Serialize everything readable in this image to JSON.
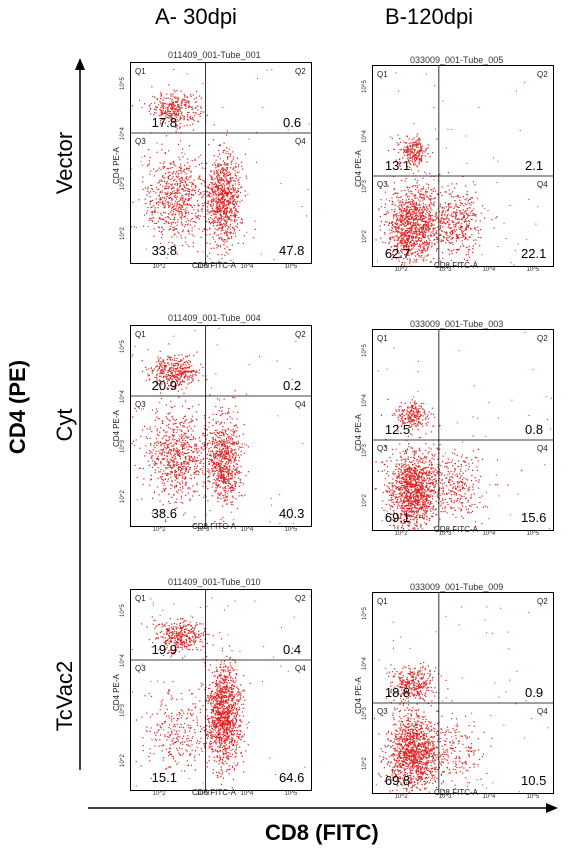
{
  "columns": [
    "A- 30dpi",
    "B-120dpi"
  ],
  "rows": [
    "Vector",
    "Cyt",
    "TcVac2"
  ],
  "y_axis_title": "CD4 (PE)",
  "x_axis_title": "CD8 (FITC)",
  "colors": {
    "dots": "#e02020",
    "gate": "#000000"
  },
  "chart_data": [
    {
      "type": "scatter",
      "title": "011409_001-Tube_001",
      "xlabel": "CD8 FITC-A",
      "ylabel": "CD4 PE-A",
      "scale": "log",
      "x_ticks": [
        "10^2",
        "10^3",
        "10^4",
        "10^5"
      ],
      "y_ticks": [
        "10^2",
        "10^3",
        "10^4",
        "10^5"
      ],
      "quadrant_labels": [
        "Q1",
        "Q2",
        "Q3",
        "Q4"
      ],
      "quadrant_values": {
        "Q1": "17.8",
        "Q2": "0.6",
        "Q3": "33.8",
        "Q4": "47.8"
      },
      "gate": {
        "x": 3.0,
        "y": 4.0
      },
      "clusters": [
        {
          "x": 2.3,
          "y": 4.5,
          "sx": 0.28,
          "sy": 0.16,
          "share": 0.18
        },
        {
          "x": 2.3,
          "y": 2.7,
          "sx": 0.35,
          "sy": 0.45,
          "share": 0.35
        },
        {
          "x": 3.4,
          "y": 2.7,
          "sx": 0.2,
          "sy": 0.45,
          "share": 0.47
        }
      ]
    },
    {
      "type": "scatter",
      "title": "033009_001-Tube_005",
      "xlabel": "CD8 FITC-A",
      "ylabel": "CD4 PE-A",
      "scale": "log",
      "x_ticks": [
        "10^2",
        "10^3",
        "10^4",
        "10^5"
      ],
      "y_ticks": [
        "10^2",
        "10^3",
        "10^4",
        "10^5"
      ],
      "quadrant_labels": [
        "Q1",
        "Q2",
        "Q3",
        "Q4"
      ],
      "quadrant_values": {
        "Q1": "13.1",
        "Q2": "2.1",
        "Q3": "62.7",
        "Q4": "22.1"
      },
      "gate": {
        "x": 2.8,
        "y": 3.2
      },
      "clusters": [
        {
          "x": 2.2,
          "y": 3.7,
          "sx": 0.18,
          "sy": 0.15,
          "share": 0.13
        },
        {
          "x": 2.2,
          "y": 2.2,
          "sx": 0.3,
          "sy": 0.4,
          "share": 0.63
        },
        {
          "x": 3.2,
          "y": 2.3,
          "sx": 0.3,
          "sy": 0.35,
          "share": 0.22
        }
      ]
    },
    {
      "type": "scatter",
      "title": "011409_001-Tube_004",
      "xlabel": "CD8 FITC-A",
      "ylabel": "CD4 PE-A",
      "scale": "log",
      "x_ticks": [
        "10^2",
        "10^3",
        "10^4",
        "10^5"
      ],
      "y_ticks": [
        "10^2",
        "10^3",
        "10^4",
        "10^5"
      ],
      "quadrant_labels": [
        "Q1",
        "Q2",
        "Q3",
        "Q4"
      ],
      "quadrant_values": {
        "Q1": "20.9",
        "Q2": "0.2",
        "Q3": "38.6",
        "Q4": "40.3"
      },
      "gate": {
        "x": 3.0,
        "y": 4.0
      },
      "clusters": [
        {
          "x": 2.3,
          "y": 4.5,
          "sx": 0.28,
          "sy": 0.16,
          "share": 0.21
        },
        {
          "x": 2.3,
          "y": 2.8,
          "sx": 0.35,
          "sy": 0.45,
          "share": 0.39
        },
        {
          "x": 3.4,
          "y": 2.7,
          "sx": 0.2,
          "sy": 0.45,
          "share": 0.4
        }
      ]
    },
    {
      "type": "scatter",
      "title": "033009_001-Tube_003",
      "xlabel": "CD8 FITC-A",
      "ylabel": "CD4 PE-A",
      "scale": "log",
      "x_ticks": [
        "10^2",
        "10^3",
        "10^4",
        "10^5"
      ],
      "y_ticks": [
        "10^2",
        "10^3",
        "10^4",
        "10^5"
      ],
      "quadrant_labels": [
        "Q1",
        "Q2",
        "Q3",
        "Q4"
      ],
      "quadrant_values": {
        "Q1": "12.5",
        "Q2": "0.8",
        "Q3": "69.1",
        "Q4": "15.6"
      },
      "gate": {
        "x": 2.8,
        "y": 3.2
      },
      "clusters": [
        {
          "x": 2.2,
          "y": 3.7,
          "sx": 0.2,
          "sy": 0.15,
          "share": 0.12
        },
        {
          "x": 2.2,
          "y": 2.2,
          "sx": 0.3,
          "sy": 0.4,
          "share": 0.7
        },
        {
          "x": 3.2,
          "y": 2.3,
          "sx": 0.3,
          "sy": 0.35,
          "share": 0.15
        }
      ]
    },
    {
      "type": "scatter",
      "title": "011409_001-Tube_010",
      "xlabel": "CD8 FITC-A",
      "ylabel": "CD4 PE-A",
      "scale": "log",
      "x_ticks": [
        "10^2",
        "10^3",
        "10^4",
        "10^5"
      ],
      "y_ticks": [
        "10^2",
        "10^3",
        "10^4",
        "10^5"
      ],
      "quadrant_labels": [
        "Q1",
        "Q2",
        "Q3",
        "Q4"
      ],
      "quadrant_values": {
        "Q1": "19.9",
        "Q2": "0.4",
        "Q3": "15.1",
        "Q4": "64.6"
      },
      "gate": {
        "x": 3.0,
        "y": 4.0
      },
      "clusters": [
        {
          "x": 2.4,
          "y": 4.5,
          "sx": 0.28,
          "sy": 0.16,
          "share": 0.2
        },
        {
          "x": 2.3,
          "y": 2.6,
          "sx": 0.4,
          "sy": 0.4,
          "share": 0.15
        },
        {
          "x": 3.4,
          "y": 2.9,
          "sx": 0.2,
          "sy": 0.5,
          "share": 0.65
        }
      ]
    },
    {
      "type": "scatter",
      "title": "033009_001-Tube_009",
      "xlabel": "CD8 FITC-A",
      "ylabel": "CD4 PE-A",
      "scale": "log",
      "x_ticks": [
        "10^2",
        "10^3",
        "10^4",
        "10^5"
      ],
      "y_ticks": [
        "10^2",
        "10^3",
        "10^4",
        "10^5"
      ],
      "quadrant_labels": [
        "Q1",
        "Q2",
        "Q3",
        "Q4"
      ],
      "quadrant_values": {
        "Q1": "18.8",
        "Q2": "0.9",
        "Q3": "69.8",
        "Q4": "10.5"
      },
      "gate": {
        "x": 2.8,
        "y": 3.2
      },
      "clusters": [
        {
          "x": 2.2,
          "y": 3.6,
          "sx": 0.25,
          "sy": 0.18,
          "share": 0.18
        },
        {
          "x": 2.2,
          "y": 2.2,
          "sx": 0.3,
          "sy": 0.4,
          "share": 0.7
        },
        {
          "x": 3.2,
          "y": 2.3,
          "sx": 0.3,
          "sy": 0.3,
          "share": 0.1
        }
      ]
    }
  ]
}
